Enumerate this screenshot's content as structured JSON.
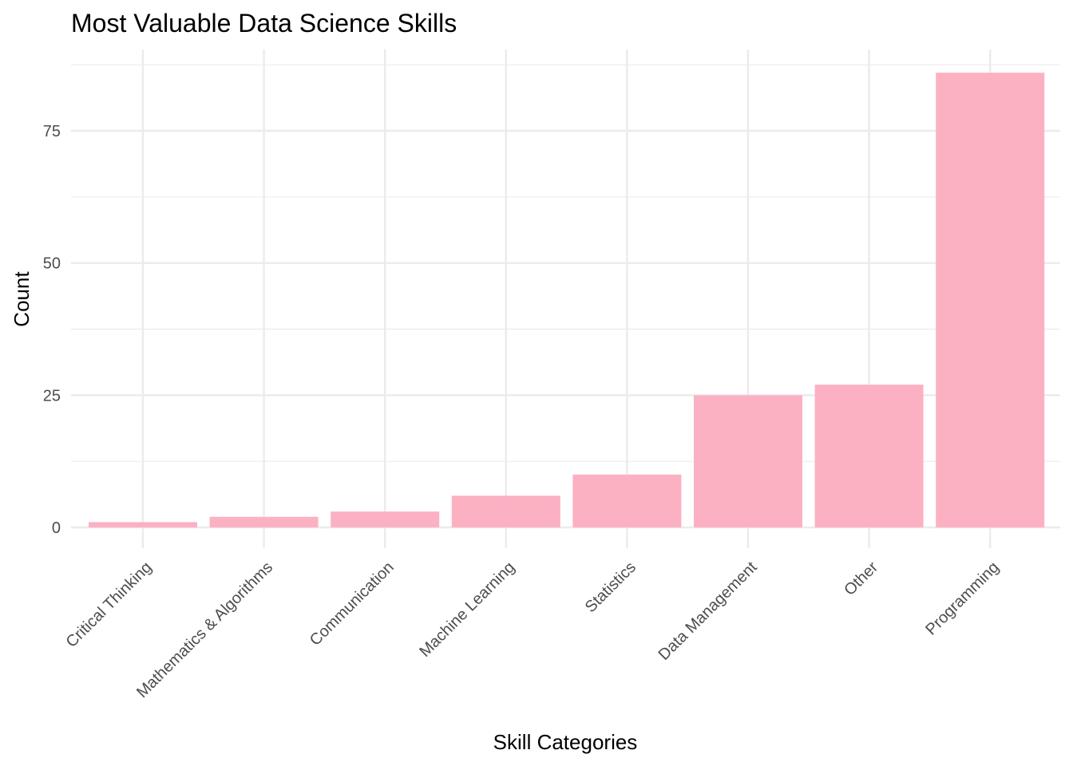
{
  "chart_data": {
    "type": "bar",
    "title": "Most Valuable Data Science Skills",
    "xlabel": "Skill Categories",
    "ylabel": "Count",
    "categories": [
      "Critical Thinking",
      "Mathematics & Algorithms",
      "Communication",
      "Machine Learning",
      "Statistics",
      "Data Management",
      "Other",
      "Programming"
    ],
    "values": [
      1,
      2,
      3,
      6,
      10,
      25,
      27,
      86
    ],
    "ylim": [
      0,
      90
    ],
    "yticks": [
      0,
      25,
      50,
      75
    ],
    "ytick_labels": [
      "0",
      "25",
      "50",
      "75"
    ],
    "grid": true,
    "legend": "none",
    "bar_color": "#FCB1C3",
    "grid_color": "#EBEBEB"
  }
}
